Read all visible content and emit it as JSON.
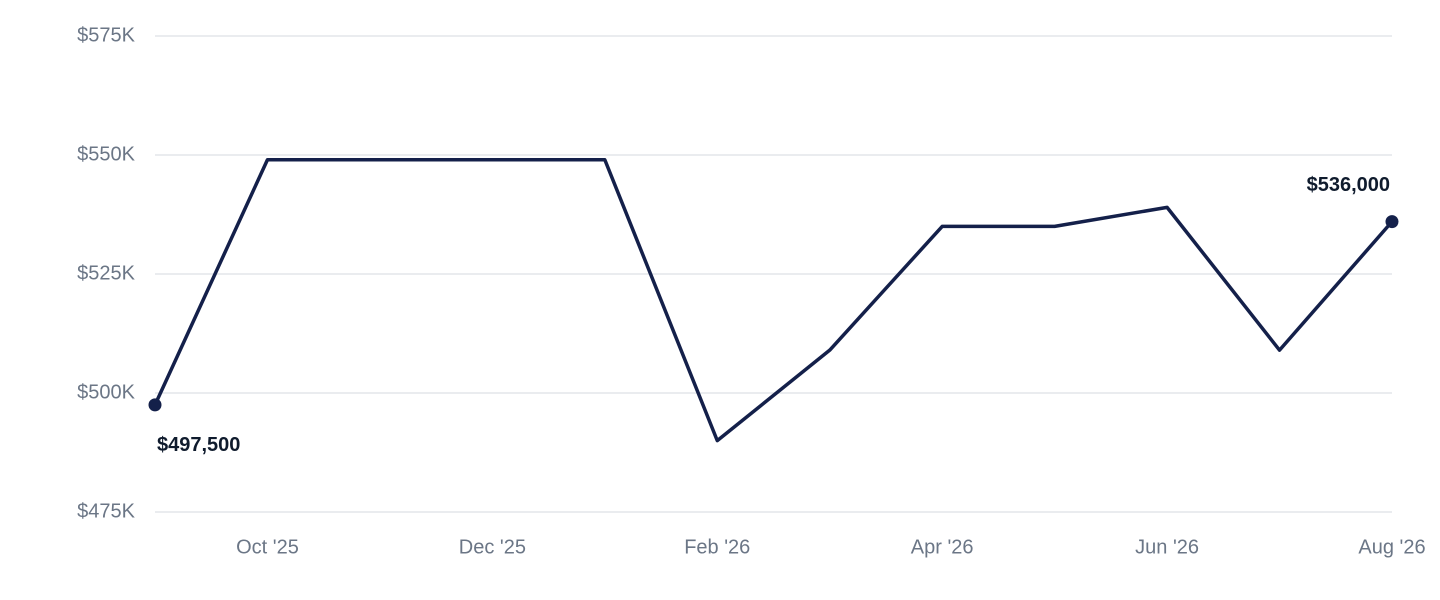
{
  "chart_data": {
    "type": "line",
    "categories": [
      null,
      "Oct '25",
      null,
      "Dec '25",
      null,
      "Feb '26",
      null,
      "Apr '26",
      null,
      "Jun '26",
      null,
      "Aug '26"
    ],
    "values": [
      497500,
      549000,
      549000,
      549000,
      549000,
      490000,
      509000,
      535000,
      535000,
      539000,
      509000,
      536000
    ],
    "value_labels": [
      "$497,500",
      null,
      null,
      null,
      null,
      null,
      null,
      null,
      null,
      null,
      null,
      "$536,000"
    ],
    "color": "#14204a",
    "ylim": [
      475000,
      575000
    ],
    "yticks": [
      {
        "value": 475000,
        "label": "$475K"
      },
      {
        "value": 500000,
        "label": "$500K"
      },
      {
        "value": 525000,
        "label": "$525K"
      },
      {
        "value": 550000,
        "label": "$550K"
      },
      {
        "value": 575000,
        "label": "$575K"
      }
    ],
    "grid": true
  }
}
